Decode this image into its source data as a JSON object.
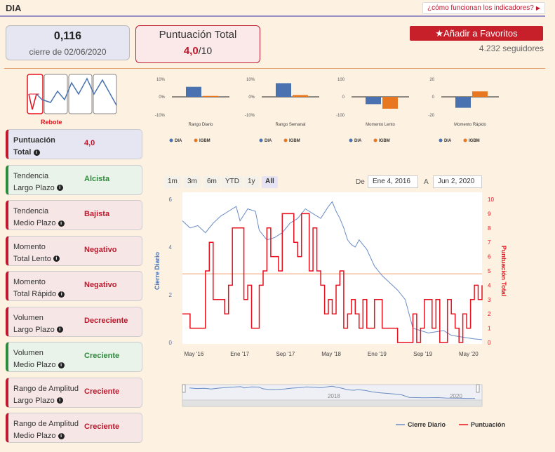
{
  "header": {
    "ticker": "DIA",
    "how_link": "¿cómo funcionan los indicadores?"
  },
  "price": {
    "value": "0,116",
    "date_label": "cierre de 02/06/2020"
  },
  "score": {
    "title": "Puntuación Total",
    "value": "4,0",
    "max": "/10"
  },
  "favorites": {
    "button_label": "Añadir a Favoritos",
    "followers": "4.232 seguidores"
  },
  "pattern": {
    "label": "Rebote"
  },
  "mini_charts": [
    {
      "name": "Rango Diario",
      "ymax_label": "10%",
      "ymid_label": "0%",
      "ymin_label": "-10%",
      "ymax": 10,
      "ymin": -10,
      "dia": 5.5,
      "igbm": 0.5
    },
    {
      "name": "Rango Semanal",
      "ymax_label": "10%",
      "ymid_label": "0%",
      "ymin_label": "-10%",
      "ymax": 10,
      "ymin": -10,
      "dia": 7.5,
      "igbm": 1
    },
    {
      "name": "Momento Lento",
      "ymax_label": "100",
      "ymid_label": "0",
      "ymin_label": "-100",
      "ymax": 100,
      "ymin": -100,
      "dia": -40,
      "igbm": -65
    },
    {
      "name": "Momento Rápido",
      "ymax_label": "20",
      "ymid_label": "0",
      "ymin_label": "-20",
      "ymax": 20,
      "ymin": -20,
      "dia": -12,
      "igbm": 6
    }
  ],
  "mini_legend": {
    "dia": "DIA",
    "igbm": "IGBM"
  },
  "colors": {
    "dia": "#4a72b0",
    "igbm": "#e87722",
    "red": "#c0182c",
    "green": "#2e8b3c",
    "price_line": "#6b8cc4",
    "score_line": "#e8101c"
  },
  "indicators": [
    {
      "label1": "Puntuación",
      "label2": "Total",
      "value": "4,0",
      "style": "purple"
    },
    {
      "label1": "Tendencia",
      "label2": "Largo Plazo",
      "value": "Alcista",
      "style": "green"
    },
    {
      "label1": "Tendencia",
      "label2": "Medio Plazo",
      "value": "Bajista",
      "style": "red"
    },
    {
      "label1": "Momento",
      "label2": "Total Lento",
      "value": "Negativo",
      "style": "red"
    },
    {
      "label1": "Momento",
      "label2": "Total Rápido",
      "value": "Negativo",
      "style": "red"
    },
    {
      "label1": "Volumen",
      "label2": "Largo Plazo",
      "value": "Decreciente",
      "style": "red"
    },
    {
      "label1": "Volumen",
      "label2": "Medio Plazo",
      "value": "Creciente",
      "style": "green"
    },
    {
      "label1": "Rango de Amplitud",
      "label2": "Largo Plazo",
      "value": "Creciente",
      "style": "red"
    },
    {
      "label1": "Rango de Amplitud",
      "label2": "Medio Plazo",
      "value": "Creciente",
      "style": "red"
    }
  ],
  "range_selector": {
    "buttons": [
      "1m",
      "3m",
      "6m",
      "YTD",
      "1y",
      "All"
    ],
    "selected": "All"
  },
  "date_range": {
    "from_label": "De",
    "from": "Ene 4, 2016",
    "to_label": "A",
    "to": "Jun 2, 2020"
  },
  "chart_data": {
    "type": "line",
    "y_left_label": "Cierre Diario",
    "y_right_label": "Puntuación Total",
    "y_left_ticks": [
      "0",
      "2",
      "4",
      "6"
    ],
    "y_left_range": [
      0,
      6
    ],
    "y_right_ticks": [
      "0",
      "1",
      "2",
      "3",
      "4",
      "5",
      "6",
      "7",
      "8",
      "9",
      "10"
    ],
    "y_right_range": [
      0,
      10
    ],
    "x_ticks": [
      "May '16",
      "Ene '17",
      "Sep '17",
      "May '18",
      "Ene '19",
      "Sep '19",
      "May '20"
    ],
    "threshold_score": 4.8,
    "series": [
      {
        "name": "Cierre Diario",
        "axis": "left",
        "points": [
          [
            0,
            5.1
          ],
          [
            4,
            4.8
          ],
          [
            8,
            4.9
          ],
          [
            12,
            4.6
          ],
          [
            16,
            5.0
          ],
          [
            20,
            5.3
          ],
          [
            24,
            5.5
          ],
          [
            28,
            5.7
          ],
          [
            30,
            5.1
          ],
          [
            34,
            5.6
          ],
          [
            38,
            5.5
          ],
          [
            40,
            4.7
          ],
          [
            44,
            4.3
          ],
          [
            48,
            4.4
          ],
          [
            52,
            4.6
          ],
          [
            56,
            5.0
          ],
          [
            60,
            5.2
          ],
          [
            64,
            5.6
          ],
          [
            68,
            5.4
          ],
          [
            72,
            5.2
          ],
          [
            76,
            5.7
          ],
          [
            78,
            5.9
          ],
          [
            80,
            5.5
          ],
          [
            82,
            5.2
          ],
          [
            84,
            4.8
          ],
          [
            86,
            4.3
          ],
          [
            88,
            4.1
          ],
          [
            90,
            4.0
          ],
          [
            92,
            4.3
          ],
          [
            96,
            3.9
          ],
          [
            100,
            3.2
          ],
          [
            104,
            2.8
          ],
          [
            108,
            2.5
          ],
          [
            112,
            2.2
          ],
          [
            116,
            1.8
          ],
          [
            120,
            0.6
          ],
          [
            124,
            0.5
          ],
          [
            128,
            0.4
          ],
          [
            132,
            0.45
          ],
          [
            136,
            0.5
          ],
          [
            140,
            0.3
          ],
          [
            144,
            0.25
          ],
          [
            148,
            0.2
          ],
          [
            152,
            0.15
          ],
          [
            156,
            0.12
          ]
        ]
      },
      {
        "name": "Puntuación",
        "axis": "right",
        "points": [
          [
            0,
            2
          ],
          [
            4,
            1
          ],
          [
            8,
            1
          ],
          [
            12,
            5
          ],
          [
            14,
            7
          ],
          [
            16,
            3
          ],
          [
            20,
            3
          ],
          [
            22,
            2
          ],
          [
            24,
            4
          ],
          [
            26,
            8
          ],
          [
            30,
            8
          ],
          [
            32,
            3
          ],
          [
            34,
            4
          ],
          [
            36,
            1
          ],
          [
            38,
            1
          ],
          [
            40,
            4
          ],
          [
            42,
            5
          ],
          [
            44,
            8
          ],
          [
            46,
            6
          ],
          [
            48,
            6
          ],
          [
            50,
            5
          ],
          [
            52,
            9
          ],
          [
            56,
            9
          ],
          [
            58,
            7
          ],
          [
            60,
            6
          ],
          [
            62,
            9
          ],
          [
            64,
            9
          ],
          [
            66,
            5
          ],
          [
            68,
            8
          ],
          [
            70,
            5
          ],
          [
            72,
            4
          ],
          [
            74,
            2
          ],
          [
            76,
            3
          ],
          [
            78,
            2
          ],
          [
            80,
            4
          ],
          [
            82,
            5
          ],
          [
            84,
            1
          ],
          [
            86,
            2
          ],
          [
            88,
            3
          ],
          [
            90,
            2
          ],
          [
            92,
            1
          ],
          [
            94,
            3
          ],
          [
            96,
            1
          ],
          [
            100,
            3
          ],
          [
            104,
            1
          ],
          [
            108,
            1
          ],
          [
            112,
            0
          ],
          [
            116,
            0
          ],
          [
            120,
            2
          ],
          [
            122,
            0
          ],
          [
            124,
            1
          ],
          [
            126,
            3
          ],
          [
            128,
            3
          ],
          [
            130,
            1
          ],
          [
            132,
            3
          ],
          [
            134,
            0
          ],
          [
            136,
            0
          ],
          [
            138,
            3
          ],
          [
            140,
            2
          ],
          [
            142,
            1
          ],
          [
            144,
            0
          ],
          [
            146,
            2
          ],
          [
            148,
            1
          ],
          [
            150,
            3
          ],
          [
            152,
            4
          ],
          [
            154,
            3
          ],
          [
            156,
            4
          ]
        ]
      }
    ],
    "legend": [
      "Cierre Diario",
      "Puntuación"
    ],
    "navigator_labels": [
      "2018",
      "2020"
    ]
  }
}
